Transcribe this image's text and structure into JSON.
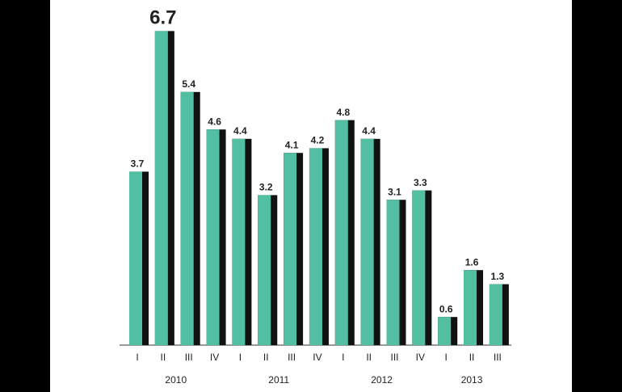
{
  "chart_data": {
    "type": "bar",
    "categories": [
      "I",
      "II",
      "III",
      "IV",
      "I",
      "II",
      "III",
      "IV",
      "I",
      "II",
      "III",
      "IV",
      "I",
      "II",
      "III"
    ],
    "x_groups": [
      "2010",
      "2011",
      "2012",
      "2013"
    ],
    "values": [
      3.7,
      6.7,
      5.4,
      4.6,
      4.4,
      3.2,
      4.1,
      4.2,
      4.8,
      4.4,
      3.1,
      3.3,
      0.6,
      1.6,
      1.3
    ],
    "color": "#52bfa3",
    "shadow_color": "#111111"
  }
}
